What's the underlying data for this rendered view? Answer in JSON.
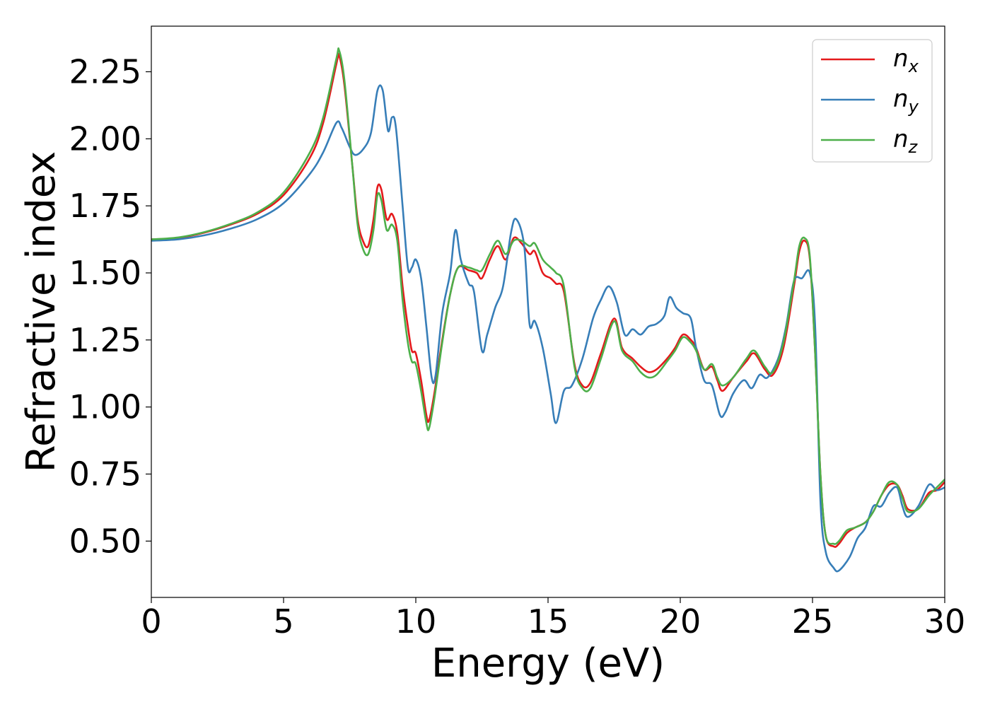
{
  "chart_data": {
    "type": "line",
    "xlabel": "Energy (eV)",
    "ylabel": "Refractive index",
    "xlim": [
      0,
      30
    ],
    "ylim": [
      0.29,
      2.42
    ],
    "xticks": [
      "0",
      "5",
      "10",
      "15",
      "20",
      "25",
      "30"
    ],
    "yticks": [
      "0.50",
      "0.75",
      "1.00",
      "1.25",
      "1.50",
      "1.75",
      "2.00",
      "2.25"
    ],
    "grid": false,
    "legend_position": "top-right",
    "series": [
      {
        "name": "n_x",
        "label_base": "n",
        "label_sub": "x",
        "color": "#e41a1c",
        "points": [
          [
            0,
            1.625
          ],
          [
            1,
            1.63
          ],
          [
            2,
            1.65
          ],
          [
            3,
            1.68
          ],
          [
            4,
            1.72
          ],
          [
            5,
            1.79
          ],
          [
            6,
            1.93
          ],
          [
            6.5,
            2.06
          ],
          [
            7.0,
            2.28
          ],
          [
            7.1,
            2.31
          ],
          [
            7.3,
            2.2
          ],
          [
            7.6,
            1.9
          ],
          [
            7.8,
            1.7
          ],
          [
            8.0,
            1.62
          ],
          [
            8.2,
            1.6
          ],
          [
            8.4,
            1.7
          ],
          [
            8.55,
            1.82
          ],
          [
            8.7,
            1.81
          ],
          [
            8.9,
            1.7
          ],
          [
            9.1,
            1.72
          ],
          [
            9.3,
            1.65
          ],
          [
            9.5,
            1.45
          ],
          [
            9.7,
            1.3
          ],
          [
            9.85,
            1.21
          ],
          [
            10.0,
            1.2
          ],
          [
            10.2,
            1.1
          ],
          [
            10.4,
            0.97
          ],
          [
            10.5,
            0.95
          ],
          [
            10.7,
            1.05
          ],
          [
            11.0,
            1.25
          ],
          [
            11.3,
            1.42
          ],
          [
            11.6,
            1.52
          ],
          [
            12.0,
            1.51
          ],
          [
            12.3,
            1.5
          ],
          [
            12.5,
            1.48
          ],
          [
            12.8,
            1.55
          ],
          [
            13.1,
            1.6
          ],
          [
            13.4,
            1.55
          ],
          [
            13.7,
            1.63
          ],
          [
            14.0,
            1.61
          ],
          [
            14.3,
            1.57
          ],
          [
            14.5,
            1.58
          ],
          [
            14.8,
            1.5
          ],
          [
            15.1,
            1.48
          ],
          [
            15.3,
            1.46
          ],
          [
            15.6,
            1.43
          ],
          [
            16.0,
            1.16
          ],
          [
            16.3,
            1.08
          ],
          [
            16.6,
            1.09
          ],
          [
            17.0,
            1.2
          ],
          [
            17.5,
            1.33
          ],
          [
            17.8,
            1.22
          ],
          [
            18.2,
            1.18
          ],
          [
            18.5,
            1.15
          ],
          [
            18.8,
            1.13
          ],
          [
            19.1,
            1.14
          ],
          [
            19.5,
            1.18
          ],
          [
            19.8,
            1.22
          ],
          [
            20.1,
            1.27
          ],
          [
            20.4,
            1.25
          ],
          [
            20.6,
            1.22
          ],
          [
            20.9,
            1.14
          ],
          [
            21.2,
            1.15
          ],
          [
            21.4,
            1.1
          ],
          [
            21.6,
            1.06
          ],
          [
            22.0,
            1.11
          ],
          [
            22.5,
            1.17
          ],
          [
            22.8,
            1.2
          ],
          [
            23.2,
            1.14
          ],
          [
            23.5,
            1.12
          ],
          [
            23.9,
            1.22
          ],
          [
            24.3,
            1.45
          ],
          [
            24.5,
            1.58
          ],
          [
            24.7,
            1.62
          ],
          [
            24.9,
            1.55
          ],
          [
            25.1,
            1.2
          ],
          [
            25.3,
            0.75
          ],
          [
            25.5,
            0.52
          ],
          [
            25.8,
            0.48
          ],
          [
            26.0,
            0.49
          ],
          [
            26.3,
            0.53
          ],
          [
            26.6,
            0.55
          ],
          [
            27.0,
            0.57
          ],
          [
            27.3,
            0.61
          ],
          [
            27.6,
            0.67
          ],
          [
            27.9,
            0.71
          ],
          [
            28.2,
            0.71
          ],
          [
            28.4,
            0.67
          ],
          [
            28.6,
            0.62
          ],
          [
            29.0,
            0.62
          ],
          [
            29.4,
            0.68
          ],
          [
            29.7,
            0.69
          ],
          [
            30,
            0.72
          ]
        ]
      },
      {
        "name": "n_y",
        "label_base": "n",
        "label_sub": "y",
        "color": "#377eb8",
        "points": [
          [
            0,
            1.62
          ],
          [
            1,
            1.625
          ],
          [
            2,
            1.64
          ],
          [
            3,
            1.665
          ],
          [
            4,
            1.7
          ],
          [
            5,
            1.76
          ],
          [
            6,
            1.87
          ],
          [
            6.5,
            1.95
          ],
          [
            7.0,
            2.06
          ],
          [
            7.2,
            2.04
          ],
          [
            7.5,
            1.97
          ],
          [
            7.7,
            1.94
          ],
          [
            8.0,
            1.96
          ],
          [
            8.3,
            2.02
          ],
          [
            8.55,
            2.18
          ],
          [
            8.75,
            2.18
          ],
          [
            8.95,
            2.03
          ],
          [
            9.1,
            2.08
          ],
          [
            9.25,
            2.04
          ],
          [
            9.5,
            1.75
          ],
          [
            9.7,
            1.52
          ],
          [
            9.85,
            1.52
          ],
          [
            10.0,
            1.55
          ],
          [
            10.2,
            1.48
          ],
          [
            10.4,
            1.3
          ],
          [
            10.6,
            1.11
          ],
          [
            10.75,
            1.12
          ],
          [
            11.0,
            1.35
          ],
          [
            11.3,
            1.5
          ],
          [
            11.5,
            1.66
          ],
          [
            11.7,
            1.55
          ],
          [
            12.0,
            1.46
          ],
          [
            12.2,
            1.43
          ],
          [
            12.5,
            1.21
          ],
          [
            12.7,
            1.27
          ],
          [
            13.0,
            1.37
          ],
          [
            13.3,
            1.45
          ],
          [
            13.6,
            1.65
          ],
          [
            13.8,
            1.7
          ],
          [
            14.1,
            1.6
          ],
          [
            14.3,
            1.31
          ],
          [
            14.5,
            1.32
          ],
          [
            14.8,
            1.22
          ],
          [
            15.1,
            1.05
          ],
          [
            15.3,
            0.94
          ],
          [
            15.6,
            1.06
          ],
          [
            15.9,
            1.08
          ],
          [
            16.3,
            1.18
          ],
          [
            16.7,
            1.33
          ],
          [
            17.0,
            1.4
          ],
          [
            17.3,
            1.45
          ],
          [
            17.6,
            1.39
          ],
          [
            17.9,
            1.27
          ],
          [
            18.2,
            1.29
          ],
          [
            18.5,
            1.27
          ],
          [
            18.8,
            1.3
          ],
          [
            19.1,
            1.31
          ],
          [
            19.4,
            1.34
          ],
          [
            19.6,
            1.41
          ],
          [
            19.85,
            1.37
          ],
          [
            20.1,
            1.35
          ],
          [
            20.4,
            1.33
          ],
          [
            20.6,
            1.22
          ],
          [
            20.9,
            1.1
          ],
          [
            21.2,
            1.08
          ],
          [
            21.5,
            0.97
          ],
          [
            21.7,
            0.98
          ],
          [
            22.0,
            1.05
          ],
          [
            22.4,
            1.1
          ],
          [
            22.7,
            1.07
          ],
          [
            23.0,
            1.12
          ],
          [
            23.3,
            1.11
          ],
          [
            23.7,
            1.18
          ],
          [
            24.0,
            1.3
          ],
          [
            24.3,
            1.47
          ],
          [
            24.6,
            1.48
          ],
          [
            24.9,
            1.5
          ],
          [
            25.1,
            1.3
          ],
          [
            25.3,
            0.65
          ],
          [
            25.5,
            0.46
          ],
          [
            25.8,
            0.4
          ],
          [
            26.0,
            0.39
          ],
          [
            26.4,
            0.44
          ],
          [
            26.7,
            0.51
          ],
          [
            27.0,
            0.55
          ],
          [
            27.3,
            0.63
          ],
          [
            27.6,
            0.63
          ],
          [
            27.9,
            0.68
          ],
          [
            28.2,
            0.7
          ],
          [
            28.4,
            0.63
          ],
          [
            28.6,
            0.59
          ],
          [
            29.0,
            0.63
          ],
          [
            29.4,
            0.71
          ],
          [
            29.7,
            0.69
          ],
          [
            30,
            0.7
          ]
        ]
      },
      {
        "name": "n_z",
        "label_base": "n",
        "label_sub": "z",
        "color": "#4daf4a",
        "points": [
          [
            0,
            1.625
          ],
          [
            1,
            1.632
          ],
          [
            2,
            1.652
          ],
          [
            3,
            1.683
          ],
          [
            4,
            1.725
          ],
          [
            5,
            1.8
          ],
          [
            6,
            1.95
          ],
          [
            6.5,
            2.08
          ],
          [
            7.0,
            2.3
          ],
          [
            7.1,
            2.33
          ],
          [
            7.3,
            2.22
          ],
          [
            7.6,
            1.9
          ],
          [
            7.8,
            1.68
          ],
          [
            8.0,
            1.59
          ],
          [
            8.2,
            1.57
          ],
          [
            8.4,
            1.66
          ],
          [
            8.55,
            1.79
          ],
          [
            8.7,
            1.77
          ],
          [
            8.9,
            1.66
          ],
          [
            9.1,
            1.68
          ],
          [
            9.3,
            1.62
          ],
          [
            9.5,
            1.4
          ],
          [
            9.7,
            1.24
          ],
          [
            9.85,
            1.17
          ],
          [
            10.0,
            1.16
          ],
          [
            10.2,
            1.06
          ],
          [
            10.4,
            0.94
          ],
          [
            10.5,
            0.92
          ],
          [
            10.7,
            1.03
          ],
          [
            11.0,
            1.24
          ],
          [
            11.3,
            1.42
          ],
          [
            11.6,
            1.52
          ],
          [
            12.0,
            1.52
          ],
          [
            12.3,
            1.51
          ],
          [
            12.5,
            1.51
          ],
          [
            12.8,
            1.57
          ],
          [
            13.1,
            1.62
          ],
          [
            13.4,
            1.57
          ],
          [
            13.7,
            1.62
          ],
          [
            14.0,
            1.62
          ],
          [
            14.3,
            1.6
          ],
          [
            14.5,
            1.61
          ],
          [
            14.8,
            1.55
          ],
          [
            15.1,
            1.52
          ],
          [
            15.3,
            1.5
          ],
          [
            15.6,
            1.45
          ],
          [
            16.0,
            1.15
          ],
          [
            16.3,
            1.07
          ],
          [
            16.6,
            1.07
          ],
          [
            17.0,
            1.18
          ],
          [
            17.5,
            1.32
          ],
          [
            17.8,
            1.21
          ],
          [
            18.2,
            1.17
          ],
          [
            18.5,
            1.13
          ],
          [
            18.8,
            1.11
          ],
          [
            19.1,
            1.12
          ],
          [
            19.5,
            1.17
          ],
          [
            19.8,
            1.21
          ],
          [
            20.1,
            1.26
          ],
          [
            20.4,
            1.24
          ],
          [
            20.6,
            1.21
          ],
          [
            20.9,
            1.14
          ],
          [
            21.2,
            1.16
          ],
          [
            21.4,
            1.11
          ],
          [
            21.6,
            1.08
          ],
          [
            22.0,
            1.11
          ],
          [
            22.5,
            1.18
          ],
          [
            22.8,
            1.21
          ],
          [
            23.2,
            1.15
          ],
          [
            23.5,
            1.13
          ],
          [
            23.9,
            1.24
          ],
          [
            24.3,
            1.47
          ],
          [
            24.5,
            1.6
          ],
          [
            24.7,
            1.63
          ],
          [
            24.9,
            1.56
          ],
          [
            25.1,
            1.2
          ],
          [
            25.3,
            0.75
          ],
          [
            25.5,
            0.52
          ],
          [
            25.8,
            0.49
          ],
          [
            26.0,
            0.5
          ],
          [
            26.3,
            0.54
          ],
          [
            26.6,
            0.55
          ],
          [
            27.0,
            0.57
          ],
          [
            27.3,
            0.61
          ],
          [
            27.6,
            0.67
          ],
          [
            27.9,
            0.72
          ],
          [
            28.2,
            0.71
          ],
          [
            28.4,
            0.66
          ],
          [
            28.6,
            0.61
          ],
          [
            29.0,
            0.62
          ],
          [
            29.4,
            0.67
          ],
          [
            29.7,
            0.7
          ],
          [
            30,
            0.73
          ]
        ]
      }
    ]
  }
}
